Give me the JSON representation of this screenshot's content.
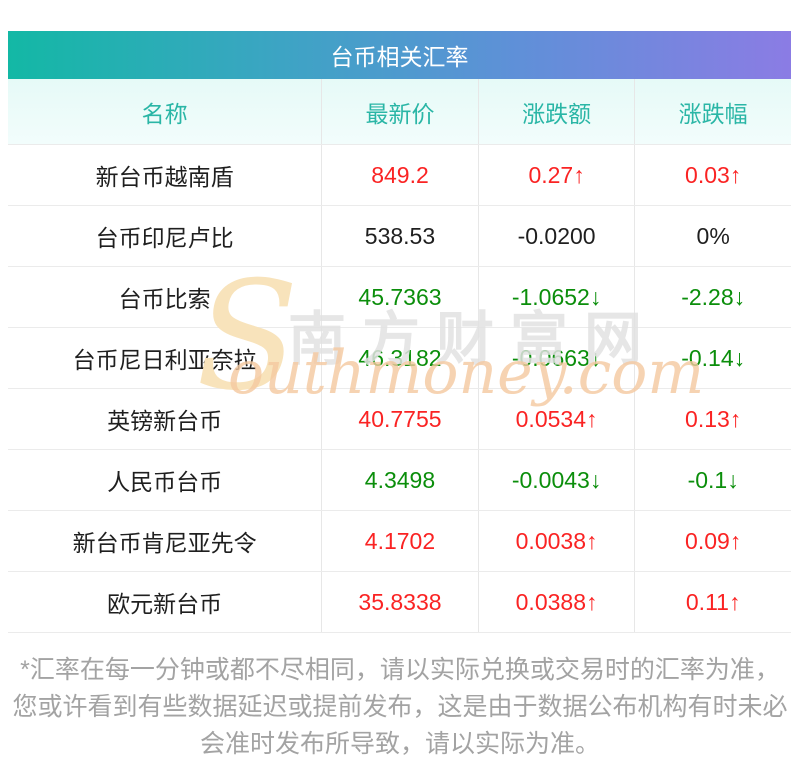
{
  "title": "台币相关汇率",
  "table": {
    "headers": {
      "name": "名称",
      "price": "最新价",
      "change": "涨跌额",
      "pct": "涨跌幅"
    },
    "rows": [
      {
        "name": "新台币越南盾",
        "price": "849.2",
        "change": "0.27↑",
        "pct": "0.03↑",
        "trend": "up"
      },
      {
        "name": "台币印尼卢比",
        "price": "538.53",
        "change": "-0.0200",
        "pct": "0%",
        "trend": "flat"
      },
      {
        "name": "台币比索",
        "price": "45.7363",
        "change": "-1.0652↓",
        "pct": "-2.28↓",
        "trend": "down"
      },
      {
        "name": "台币尼日利亚奈拉",
        "price": "46.3182",
        "change": "-0.0663↓",
        "pct": "-0.14↓",
        "trend": "down"
      },
      {
        "name": "英镑新台币",
        "price": "40.7755",
        "change": "0.0534↑",
        "pct": "0.13↑",
        "trend": "up"
      },
      {
        "name": "人民币台币",
        "price": "4.3498",
        "change": "-0.0043↓",
        "pct": "-0.1↓",
        "trend": "down"
      },
      {
        "name": "新台币肯尼亚先令",
        "price": "4.1702",
        "change": "0.0038↑",
        "pct": "0.09↑",
        "trend": "up"
      },
      {
        "name": "欧元新台币",
        "price": "35.8338",
        "change": "0.0388↑",
        "pct": "0.11↑",
        "trend": "up"
      }
    ]
  },
  "watermark": {
    "initial": "S",
    "cn": "南方财富网",
    "en": "outhmoney.com"
  },
  "footer": "*汇率在每一分钟或都不尽相同，请以实际兑换或交易时的汇率为准，您或许看到有些数据延迟或提前发布，这是由于数据公布机构有时未必会准时发布所导致，请以实际为准。",
  "colors": {
    "up": "#fa2323",
    "down": "#0b8e0b",
    "flat": "#1f1f1f",
    "title_gradient_start": "#13b8a5",
    "title_gradient_end": "#8b7ce4",
    "header_text": "#2ab6a6",
    "header_bg": "#e6faf7",
    "footer_text": "#a3a3a3"
  },
  "chart_data": {
    "type": "table",
    "title": "台币相关汇率",
    "columns": [
      "名称",
      "最新价",
      "涨跌额",
      "涨跌幅"
    ],
    "rows": [
      [
        "新台币越南盾",
        849.2,
        "0.27↑",
        "0.03↑"
      ],
      [
        "台币印尼卢比",
        538.53,
        "-0.0200",
        "0%"
      ],
      [
        "台币比索",
        45.7363,
        "-1.0652↓",
        "-2.28↓"
      ],
      [
        "台币尼日利亚奈拉",
        46.3182,
        "-0.0663↓",
        "-0.14↓"
      ],
      [
        "英镑新台币",
        40.7755,
        "0.0534↑",
        "0.13↑"
      ],
      [
        "人民币台币",
        4.3498,
        "-0.0043↓",
        "-0.1↓"
      ],
      [
        "新台币肯尼亚先令",
        4.1702,
        "0.0038↑",
        "0.09↑"
      ],
      [
        "欧元新台币",
        35.8338,
        "0.0388↑",
        "0.11↑"
      ]
    ],
    "notes": "红色=上涨(up)，绿色=下跌(down)，黑色=持平(flat)"
  }
}
